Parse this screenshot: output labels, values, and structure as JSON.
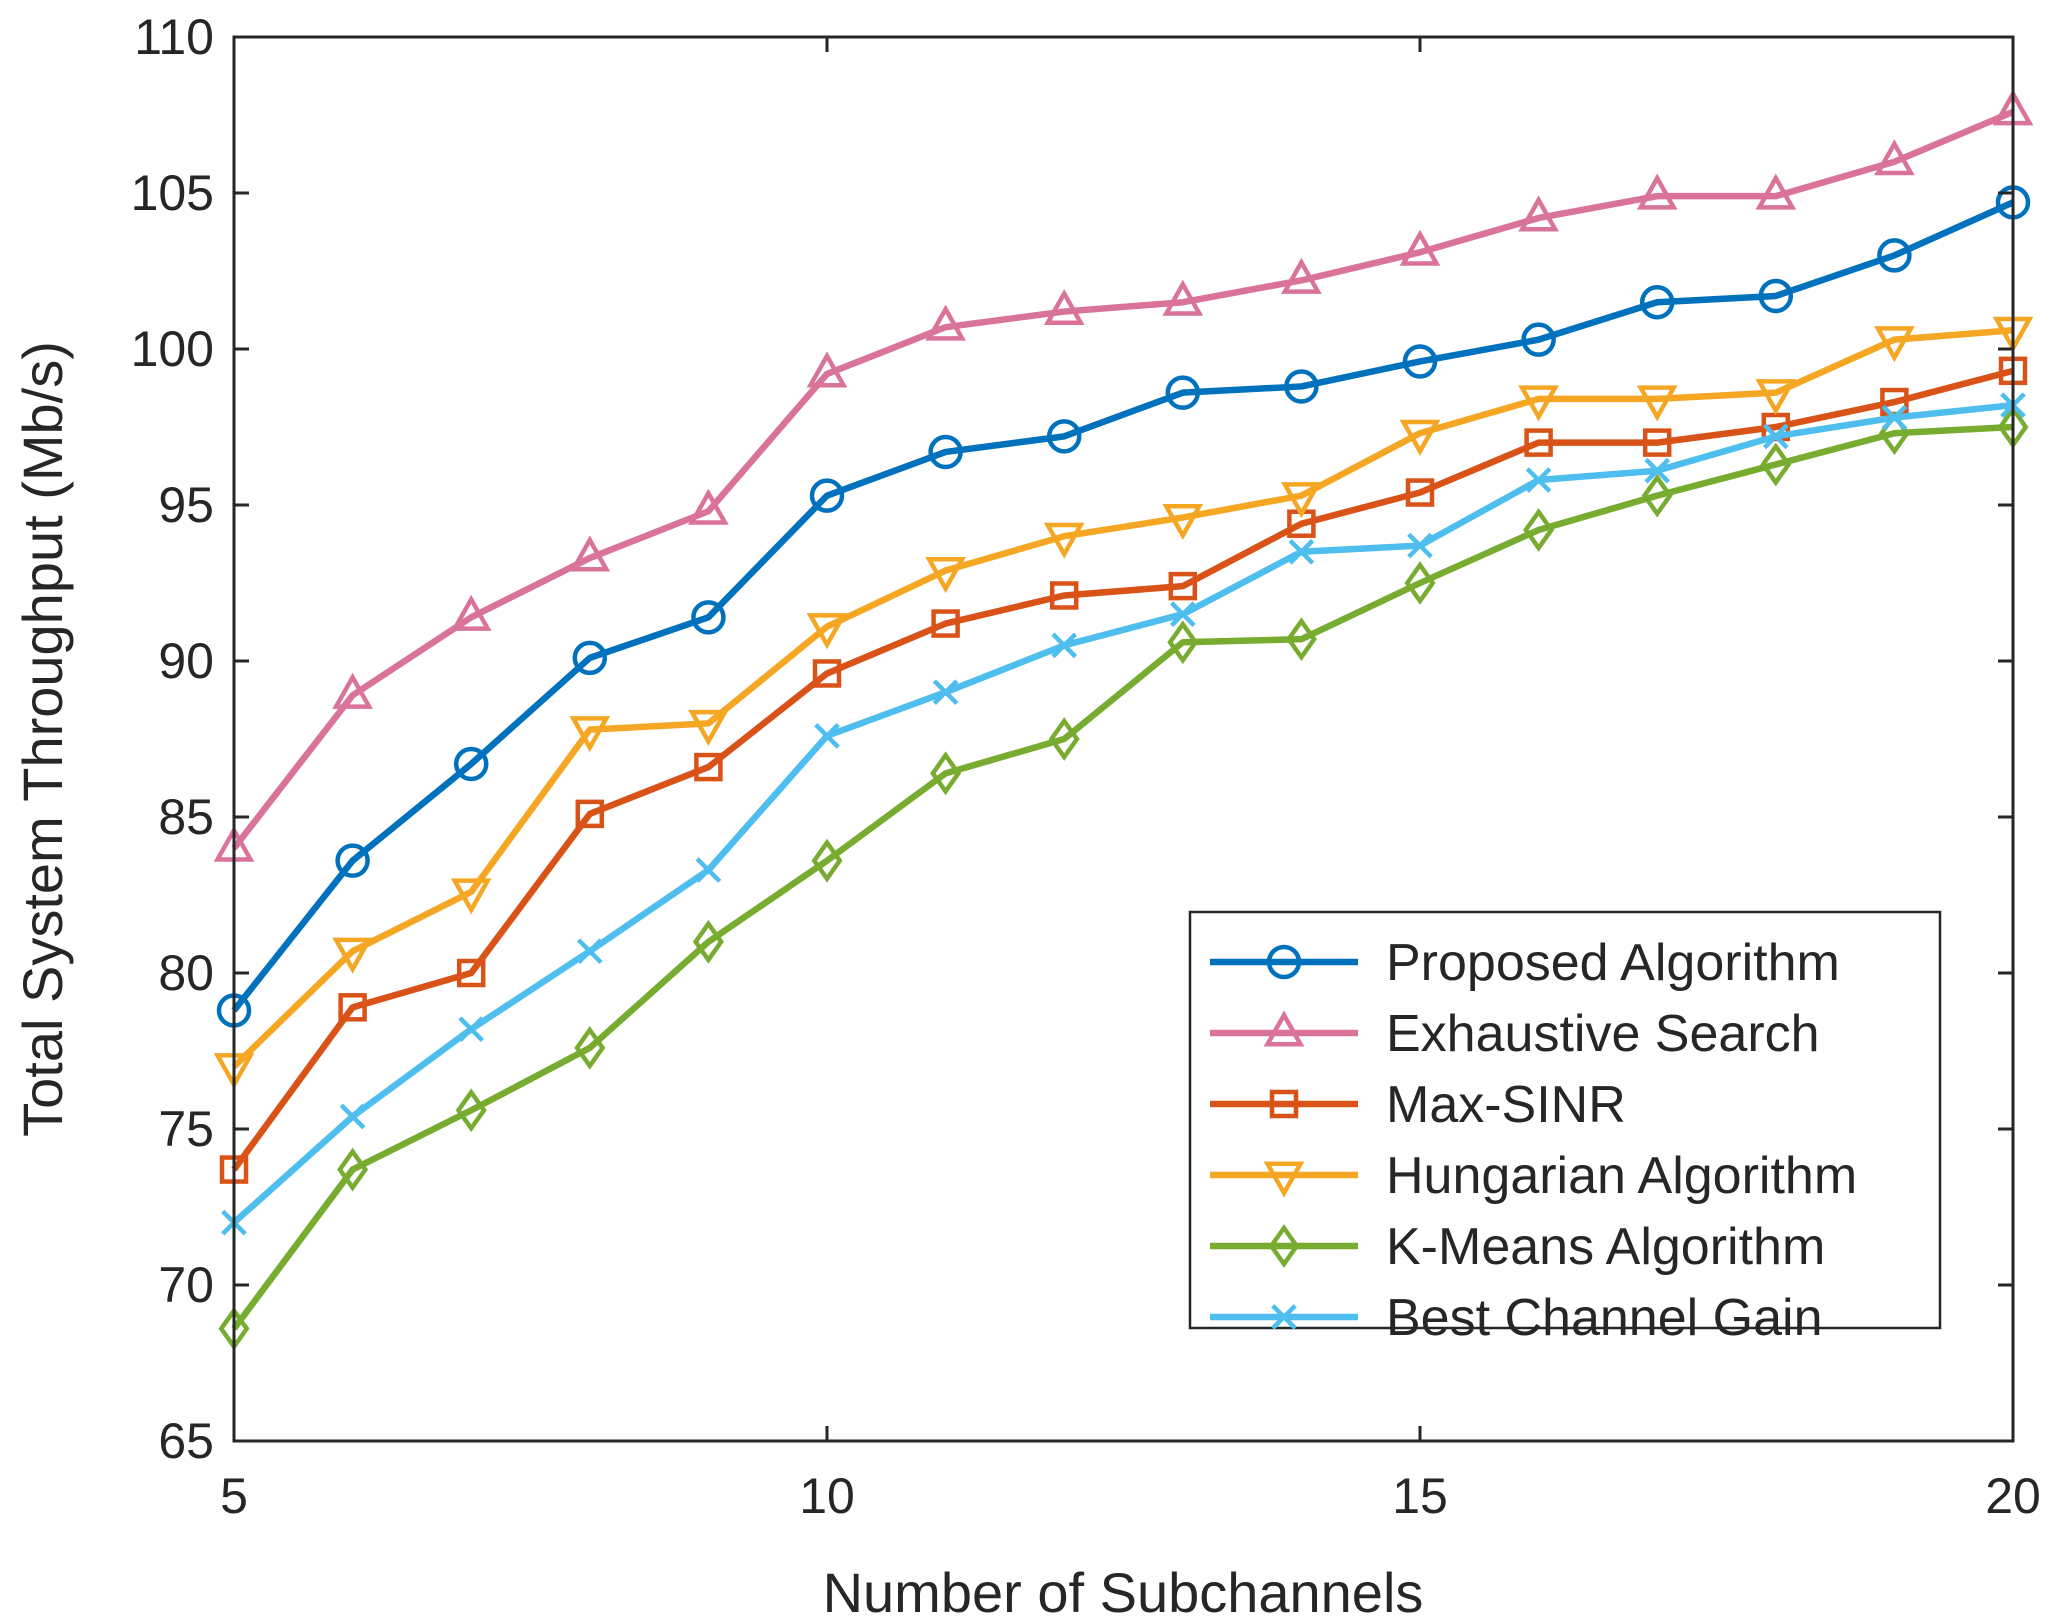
{
  "chart_data": {
    "type": "line",
    "title": "",
    "xlabel": "Number of Subchannels",
    "ylabel": "Total System Throughput (Mb/s)",
    "xlim": [
      5,
      20
    ],
    "ylim": [
      65,
      110
    ],
    "xticks": [
      5,
      10,
      15,
      20
    ],
    "yticks": [
      65,
      70,
      75,
      80,
      85,
      90,
      95,
      100,
      105,
      110
    ],
    "grid": false,
    "legend_position": "bottom-right",
    "x": [
      5,
      6,
      7,
      8,
      9,
      10,
      11,
      12,
      13,
      14,
      15,
      16,
      17,
      18,
      19,
      20
    ],
    "series": [
      {
        "name": "Proposed Algorithm",
        "color": "#0072BD",
        "marker": "circle",
        "values": [
          78.8,
          83.6,
          86.7,
          90.1,
          91.4,
          95.3,
          96.7,
          97.2,
          98.6,
          98.8,
          99.6,
          100.3,
          101.5,
          101.7,
          103.0,
          104.7
        ]
      },
      {
        "name": "Exhaustive Search",
        "color": "#D9739A",
        "marker": "triangle-up",
        "values": [
          84.0,
          88.9,
          91.4,
          93.3,
          94.8,
          99.2,
          100.7,
          101.2,
          101.5,
          102.2,
          103.1,
          104.2,
          104.9,
          104.9,
          106.0,
          107.6
        ]
      },
      {
        "name": "Max-SINR",
        "color": "#D95319",
        "marker": "square",
        "values": [
          73.7,
          78.9,
          80.0,
          85.1,
          86.6,
          89.6,
          91.2,
          92.1,
          92.4,
          94.4,
          95.4,
          97.0,
          97.0,
          97.5,
          98.3,
          99.3
        ]
      },
      {
        "name": "Hungarian Algorithm",
        "color": "#F5A623",
        "marker": "triangle-down",
        "values": [
          77.0,
          80.7,
          82.6,
          87.8,
          88.0,
          91.1,
          92.9,
          94.0,
          94.6,
          95.3,
          97.3,
          98.4,
          98.4,
          98.6,
          100.3,
          100.6
        ]
      },
      {
        "name": "K-Means Algorithm",
        "color": "#77AC30",
        "marker": "diamond",
        "values": [
          68.6,
          73.7,
          75.6,
          77.6,
          81.0,
          83.6,
          86.4,
          87.5,
          90.6,
          90.7,
          92.5,
          94.2,
          95.3,
          96.3,
          97.3,
          97.5
        ]
      },
      {
        "name": "Best Channel Gain",
        "color": "#4DBEEE",
        "marker": "x",
        "values": [
          72.0,
          75.4,
          78.2,
          80.7,
          83.3,
          87.6,
          89.0,
          90.5,
          91.5,
          93.5,
          93.7,
          95.8,
          96.1,
          97.2,
          97.8,
          98.2
        ]
      }
    ]
  }
}
